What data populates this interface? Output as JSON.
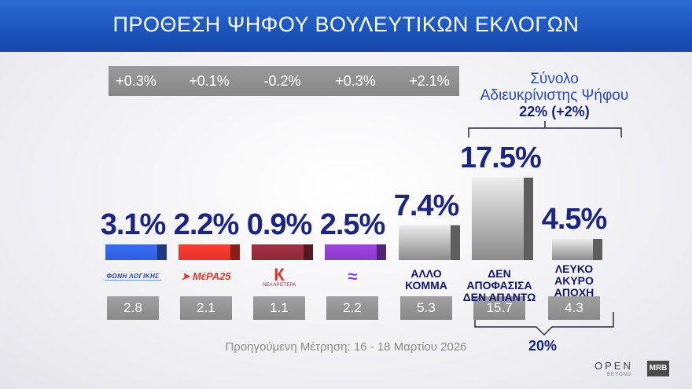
{
  "header": {
    "title": "ΠΡΟΘΕΣΗ ΨΗΦΟΥ ΒΟΥΛΕΥΤΙΚΩΝ ΕΚΛΟΓΩΝ"
  },
  "colors": {
    "header_blue": "#1f5bc4",
    "phoni_logikis": "#2f5fd9",
    "mera25": "#e0342a",
    "nea_aristera": "#8e2a3a",
    "party4": "#8a3bc7",
    "gray_bar": "#8c8c8c",
    "value_text": "#1c2580"
  },
  "chart_data": {
    "type": "bar",
    "categories": [
      "ΦΩΝΗ ΛΟΓΙΚΗΣ",
      "ΜέΡΑ25",
      "ΝΕΑ ΑΡΙΣΤΕΡΑ",
      "",
      "ΑΛΛΟ ΚΟΜΜΑ",
      "ΔΕΝ ΑΠΟΦΑΣΙΣΑ ΔΕΝ ΑΠΑΝΤΩ",
      "ΛΕΥΚΟ ΑΚΥΡΟ ΑΠΟΧΗ"
    ],
    "values": [
      3.1,
      2.2,
      0.9,
      2.5,
      7.4,
      17.5,
      4.5
    ],
    "value_labels": [
      "3.1%",
      "2.2%",
      "0.9%",
      "2.5%",
      "7.4%",
      "17.5%",
      "4.5%"
    ],
    "changes": [
      "+0.3%",
      "+0.1%",
      "-0.2%",
      "+0.3%",
      "+2.1%"
    ],
    "previous": [
      "2.8",
      "2.1",
      "1.1",
      "2.2",
      "5.3",
      "15.7",
      "4.3"
    ],
    "gray_labels": [
      [
        "ΑΛΛΟ",
        "ΚΟΜΜΑ"
      ],
      [
        "ΔΕΝ ΑΠΟΦΑΣΙΣΑ",
        "ΔΕΝ ΑΠΑΝΤΩ"
      ],
      [
        "ΛΕΥΚΟ",
        "ΑΚΥΡΟ",
        "ΑΠΟΧΗ"
      ]
    ],
    "bar_colors": [
      "#2f5fd9",
      "#e0342a",
      "#8e2a3a",
      "#8a3bc7",
      "#8c8c8c",
      "#8c8c8c",
      "#8c8c8c"
    ],
    "ylim": [
      0,
      20
    ]
  },
  "summary": {
    "title_line1": "Σύνολο",
    "title_line2": "Αδιευκρίνιστης  Ψήφου",
    "value": "22% (+2%)"
  },
  "bottom_total": "20%",
  "footnote": "Προηγούμενη Μέτρηση: 16 - 18 Μαρτίου 2026",
  "logos": {
    "phoni": "ΦΩΝΗ ΛΟΓΙΚΗΣ",
    "mera": "ΜέΡΑ25",
    "nea": "ΝΕΑ ΑΡΙΣΤΕΡΑ"
  },
  "brand": {
    "name": "OPEN",
    "sub": "BEYOND",
    "mrb": "MRB"
  }
}
